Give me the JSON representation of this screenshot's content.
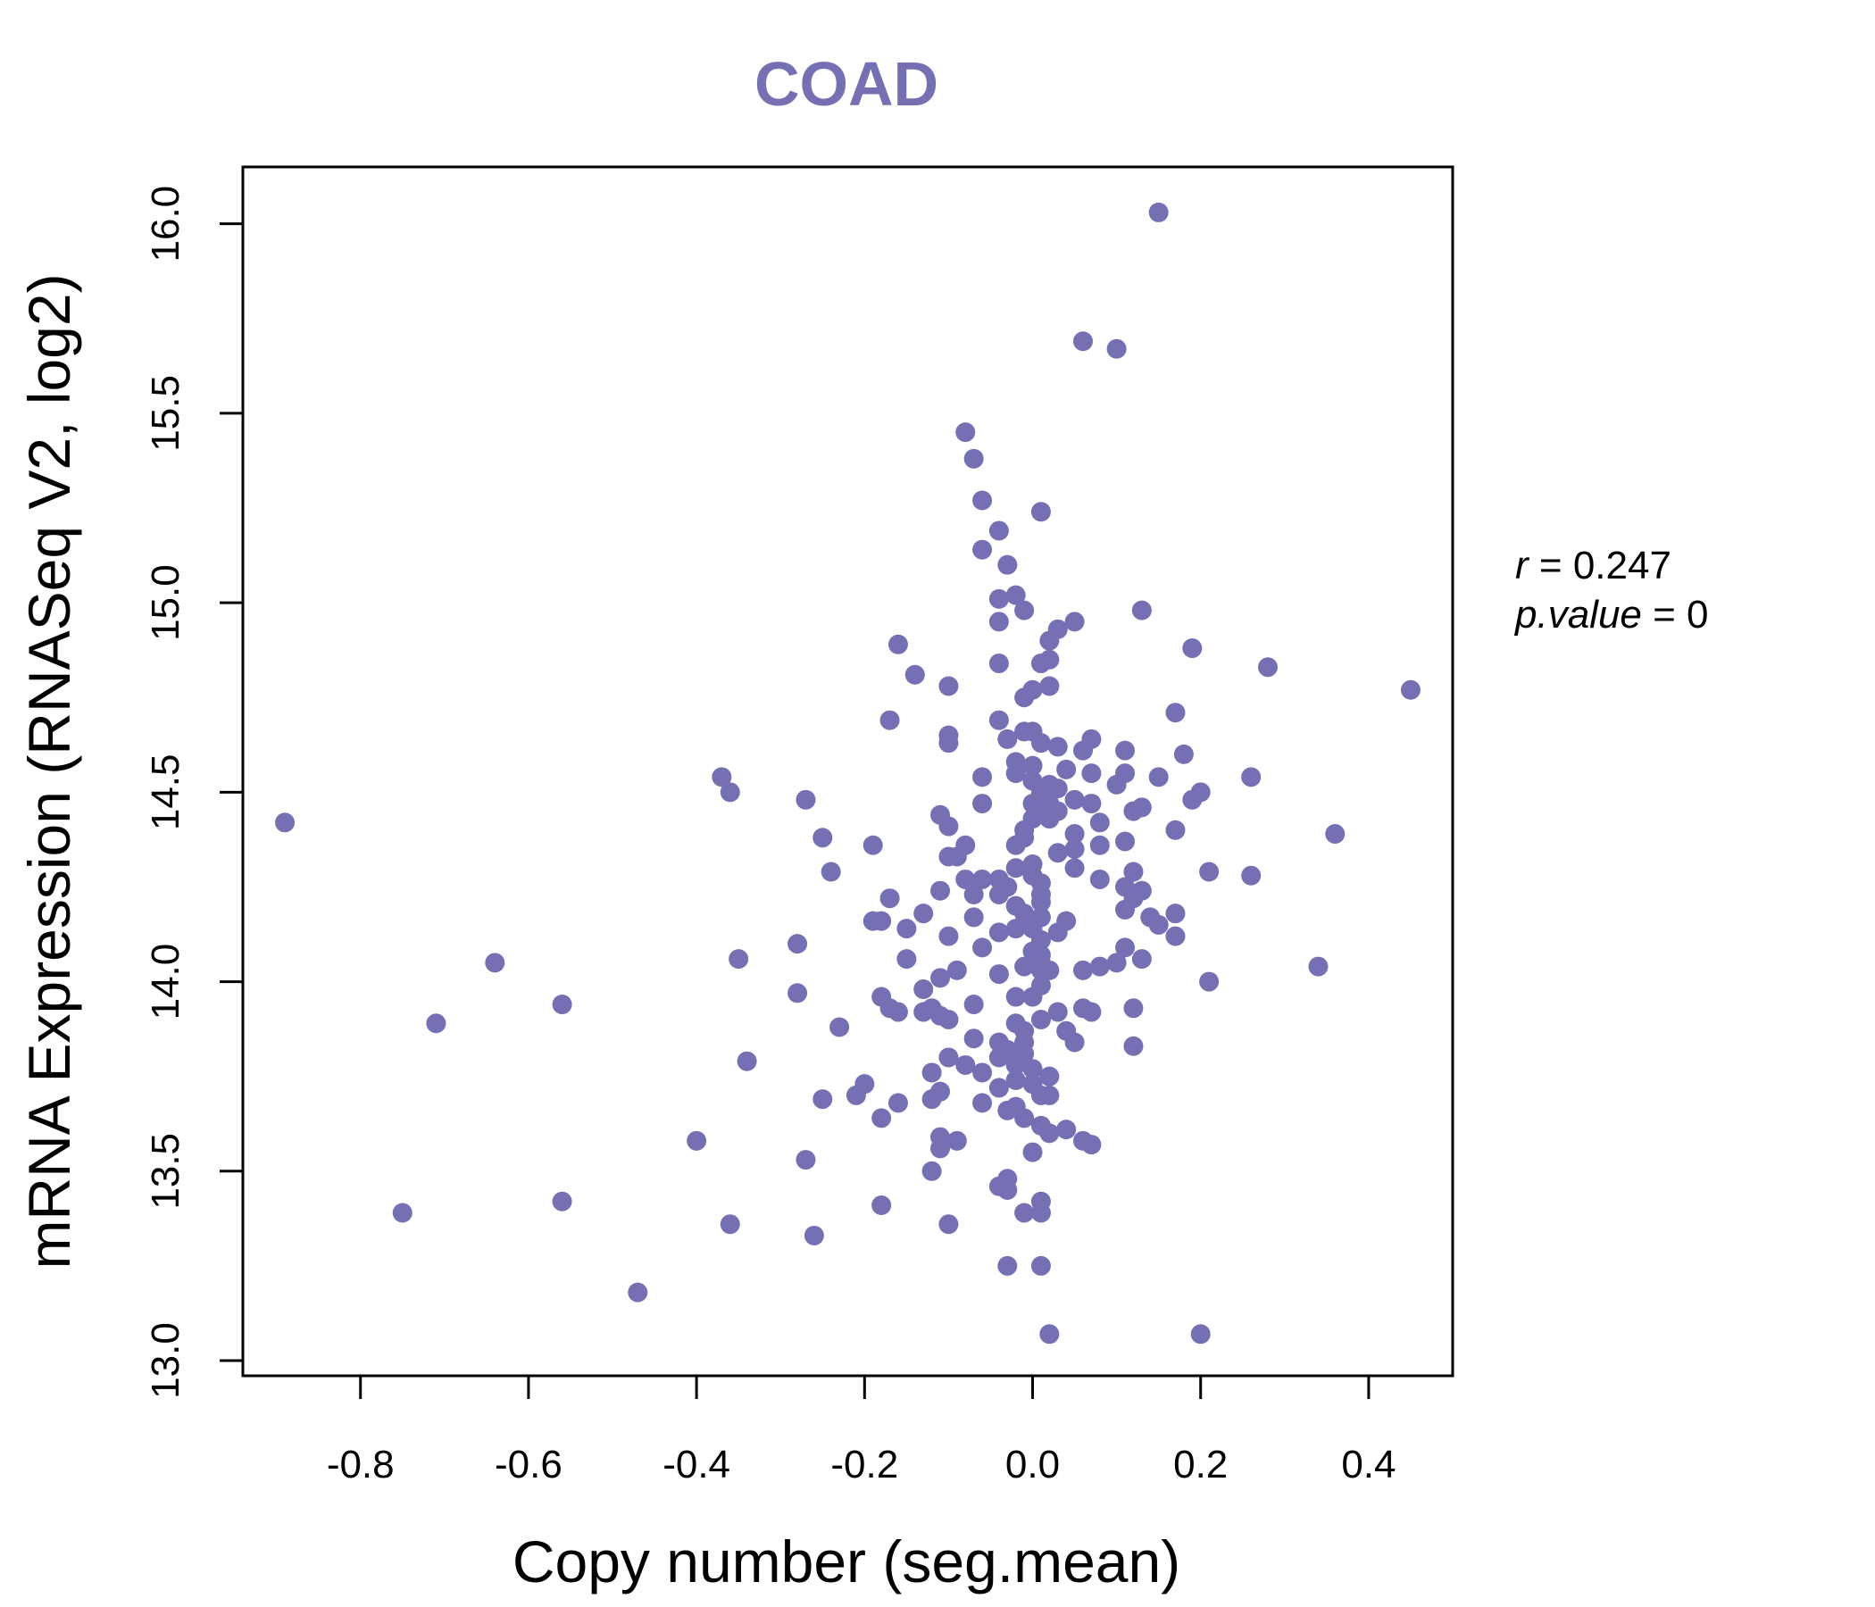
{
  "chart_data": {
    "type": "scatter",
    "title": "COAD",
    "xlabel": "Copy number (seg.mean)",
    "ylabel": "mRNA Expression (RNASeq V2, log2)",
    "xlim": [
      -0.94,
      0.5
    ],
    "ylim": [
      12.96,
      16.15
    ],
    "xticks": [
      "-0.8",
      "-0.6",
      "-0.4",
      "-0.2",
      "0.0",
      "0.2",
      "0.4"
    ],
    "yticks": [
      "13.0",
      "13.5",
      "14.0",
      "14.5",
      "15.0",
      "15.5",
      "16.0"
    ],
    "grid": false,
    "color": "#7570b3",
    "stats": {
      "r_label": "r",
      "r_value": "0.247",
      "p_label": "p.value",
      "p_value": "0"
    },
    "points": [
      [
        0.15,
        16.03
      ],
      [
        0.06,
        15.69
      ],
      [
        0.1,
        15.67
      ],
      [
        -0.08,
        15.45
      ],
      [
        -0.07,
        15.38
      ],
      [
        -0.06,
        15.27
      ],
      [
        0.01,
        15.24
      ],
      [
        -0.04,
        15.19
      ],
      [
        -0.06,
        15.14
      ],
      [
        -0.03,
        15.1
      ],
      [
        -0.02,
        15.02
      ],
      [
        -0.04,
        15.01
      ],
      [
        -0.01,
        14.98
      ],
      [
        0.13,
        14.98
      ],
      [
        0.05,
        14.95
      ],
      [
        -0.04,
        14.95
      ],
      [
        0.03,
        14.93
      ],
      [
        0.02,
        14.9
      ],
      [
        -0.16,
        14.89
      ],
      [
        0.19,
        14.88
      ],
      [
        0.02,
        14.85
      ],
      [
        0.01,
        14.84
      ],
      [
        -0.04,
        14.84
      ],
      [
        0.28,
        14.83
      ],
      [
        -0.14,
        14.81
      ],
      [
        0.02,
        14.78
      ],
      [
        -0.1,
        14.78
      ],
      [
        0.0,
        14.77
      ],
      [
        0.45,
        14.77
      ],
      [
        -0.01,
        14.75
      ],
      [
        0.17,
        14.71
      ],
      [
        -0.17,
        14.69
      ],
      [
        -0.04,
        14.69
      ],
      [
        0.0,
        14.66
      ],
      [
        -0.1,
        14.65
      ],
      [
        -0.01,
        14.66
      ],
      [
        0.07,
        14.64
      ],
      [
        -0.1,
        14.63
      ],
      [
        0.01,
        14.63
      ],
      [
        0.03,
        14.62
      ],
      [
        -0.03,
        14.64
      ],
      [
        0.06,
        14.61
      ],
      [
        0.11,
        14.61
      ],
      [
        0.18,
        14.6
      ],
      [
        -0.02,
        14.58
      ],
      [
        0.0,
        14.57
      ],
      [
        0.04,
        14.56
      ],
      [
        0.07,
        14.55
      ],
      [
        0.11,
        14.55
      ],
      [
        -0.37,
        14.54
      ],
      [
        -0.06,
        14.54
      ],
      [
        -0.02,
        14.55
      ],
      [
        0.26,
        14.54
      ],
      [
        0.15,
        14.54
      ],
      [
        0.0,
        14.53
      ],
      [
        0.02,
        14.52
      ],
      [
        0.1,
        14.52
      ],
      [
        0.03,
        14.51
      ],
      [
        0.01,
        14.5
      ],
      [
        -0.36,
        14.5
      ],
      [
        0.2,
        14.5
      ],
      [
        -0.27,
        14.48
      ],
      [
        0.05,
        14.48
      ],
      [
        0.19,
        14.48
      ],
      [
        0.0,
        14.47
      ],
      [
        0.02,
        14.47
      ],
      [
        0.07,
        14.47
      ],
      [
        -0.06,
        14.47
      ],
      [
        0.13,
        14.46
      ],
      [
        0.12,
        14.45
      ],
      [
        0.01,
        14.45
      ],
      [
        0.03,
        14.45
      ],
      [
        -0.11,
        14.44
      ],
      [
        0.0,
        14.43
      ],
      [
        0.02,
        14.43
      ],
      [
        0.08,
        14.42
      ],
      [
        -0.89,
        14.42
      ],
      [
        -0.1,
        14.41
      ],
      [
        0.17,
        14.4
      ],
      [
        -0.01,
        14.4
      ],
      [
        0.05,
        14.39
      ],
      [
        0.36,
        14.39
      ],
      [
        -0.25,
        14.38
      ],
      [
        -0.01,
        14.38
      ],
      [
        0.11,
        14.37
      ],
      [
        -0.19,
        14.36
      ],
      [
        -0.08,
        14.36
      ],
      [
        0.08,
        14.36
      ],
      [
        -0.02,
        14.36
      ],
      [
        0.05,
        14.35
      ],
      [
        0.03,
        14.34
      ],
      [
        -0.1,
        14.33
      ],
      [
        -0.09,
        14.33
      ],
      [
        0.0,
        14.31
      ],
      [
        0.05,
        14.3
      ],
      [
        -0.02,
        14.3
      ],
      [
        -0.24,
        14.29
      ],
      [
        0.12,
        14.29
      ],
      [
        0.21,
        14.29
      ],
      [
        0.26,
        14.28
      ],
      [
        0.0,
        14.28
      ],
      [
        -0.08,
        14.27
      ],
      [
        -0.06,
        14.27
      ],
      [
        -0.04,
        14.27
      ],
      [
        0.08,
        14.27
      ],
      [
        0.01,
        14.26
      ],
      [
        -0.03,
        14.25
      ],
      [
        0.11,
        14.25
      ],
      [
        0.13,
        14.24
      ],
      [
        -0.11,
        14.24
      ],
      [
        0.01,
        14.23
      ],
      [
        -0.17,
        14.22
      ],
      [
        -0.04,
        14.23
      ],
      [
        -0.07,
        14.23
      ],
      [
        0.12,
        14.22
      ],
      [
        0.01,
        14.21
      ],
      [
        -0.02,
        14.2
      ],
      [
        0.11,
        14.19
      ],
      [
        -0.13,
        14.18
      ],
      [
        -0.01,
        14.18
      ],
      [
        0.17,
        14.18
      ],
      [
        0.01,
        14.17
      ],
      [
        0.14,
        14.17
      ],
      [
        -0.07,
        14.17
      ],
      [
        -0.19,
        14.16
      ],
      [
        -0.18,
        14.16
      ],
      [
        0.04,
        14.16
      ],
      [
        0.15,
        14.15
      ],
      [
        -0.15,
        14.14
      ],
      [
        -0.02,
        14.14
      ],
      [
        0.0,
        14.14
      ],
      [
        0.03,
        14.13
      ],
      [
        -0.04,
        14.13
      ],
      [
        -0.1,
        14.12
      ],
      [
        0.17,
        14.12
      ],
      [
        0.01,
        14.11
      ],
      [
        -0.28,
        14.1
      ],
      [
        0.11,
        14.09
      ],
      [
        -0.06,
        14.09
      ],
      [
        0.0,
        14.08
      ],
      [
        0.01,
        14.07
      ],
      [
        -0.35,
        14.06
      ],
      [
        -0.15,
        14.06
      ],
      [
        0.13,
        14.06
      ],
      [
        0.1,
        14.05
      ],
      [
        -0.64,
        14.05
      ],
      [
        0.01,
        14.05
      ],
      [
        -0.01,
        14.04
      ],
      [
        0.08,
        14.04
      ],
      [
        0.34,
        14.04
      ],
      [
        -0.09,
        14.03
      ],
      [
        0.06,
        14.03
      ],
      [
        0.01,
        14.03
      ],
      [
        0.02,
        14.03
      ],
      [
        -0.04,
        14.02
      ],
      [
        -0.11,
        14.01
      ],
      [
        0.21,
        14.0
      ],
      [
        0.01,
        13.99
      ],
      [
        -0.13,
        13.98
      ],
      [
        -0.02,
        13.96
      ],
      [
        -0.18,
        13.96
      ],
      [
        0.0,
        13.96
      ],
      [
        -0.28,
        13.97
      ],
      [
        -0.56,
        13.94
      ],
      [
        -0.07,
        13.94
      ],
      [
        -0.17,
        13.93
      ],
      [
        -0.12,
        13.93
      ],
      [
        0.06,
        13.93
      ],
      [
        0.12,
        13.93
      ],
      [
        -0.16,
        13.92
      ],
      [
        0.03,
        13.92
      ],
      [
        -0.13,
        13.92
      ],
      [
        0.07,
        13.92
      ],
      [
        -0.11,
        13.91
      ],
      [
        0.01,
        13.9
      ],
      [
        -0.1,
        13.9
      ],
      [
        -0.71,
        13.89
      ],
      [
        -0.02,
        13.89
      ],
      [
        0.04,
        13.87
      ],
      [
        -0.23,
        13.88
      ],
      [
        -0.01,
        13.87
      ],
      [
        0.05,
        13.84
      ],
      [
        -0.07,
        13.85
      ],
      [
        -0.04,
        13.84
      ],
      [
        -0.01,
        13.84
      ],
      [
        0.12,
        13.83
      ],
      [
        -0.03,
        13.82
      ],
      [
        -0.01,
        13.81
      ],
      [
        -0.04,
        13.8
      ],
      [
        -0.34,
        13.79
      ],
      [
        -0.1,
        13.8
      ],
      [
        -0.02,
        13.78
      ],
      [
        0.0,
        13.77
      ],
      [
        -0.08,
        13.78
      ],
      [
        -0.06,
        13.76
      ],
      [
        -0.12,
        13.76
      ],
      [
        0.02,
        13.75
      ],
      [
        -0.02,
        13.74
      ],
      [
        -0.2,
        13.73
      ],
      [
        0.0,
        13.73
      ],
      [
        -0.04,
        13.72
      ],
      [
        -0.11,
        13.71
      ],
      [
        0.01,
        13.7
      ],
      [
        -0.21,
        13.7
      ],
      [
        -0.25,
        13.69
      ],
      [
        -0.12,
        13.69
      ],
      [
        0.02,
        13.7
      ],
      [
        -0.06,
        13.68
      ],
      [
        -0.16,
        13.68
      ],
      [
        -0.02,
        13.67
      ],
      [
        -0.03,
        13.66
      ],
      [
        -0.18,
        13.64
      ],
      [
        -0.01,
        13.64
      ],
      [
        0.01,
        13.62
      ],
      [
        0.04,
        13.61
      ],
      [
        0.02,
        13.6
      ],
      [
        -0.11,
        13.59
      ],
      [
        -0.4,
        13.58
      ],
      [
        0.06,
        13.58
      ],
      [
        0.07,
        13.57
      ],
      [
        -0.09,
        13.58
      ],
      [
        -0.11,
        13.56
      ],
      [
        0.0,
        13.55
      ],
      [
        -0.27,
        13.53
      ],
      [
        -0.12,
        13.5
      ],
      [
        -0.03,
        13.48
      ],
      [
        -0.04,
        13.46
      ],
      [
        -0.03,
        13.45
      ],
      [
        -0.18,
        13.41
      ],
      [
        -0.56,
        13.42
      ],
      [
        0.01,
        13.42
      ],
      [
        -0.75,
        13.39
      ],
      [
        -0.01,
        13.39
      ],
      [
        0.01,
        13.39
      ],
      [
        -0.36,
        13.36
      ],
      [
        -0.1,
        13.36
      ],
      [
        -0.26,
        13.33
      ],
      [
        -0.03,
        13.25
      ],
      [
        0.01,
        13.25
      ],
      [
        -0.47,
        13.18
      ],
      [
        0.02,
        13.07
      ],
      [
        0.2,
        13.07
      ]
    ]
  }
}
